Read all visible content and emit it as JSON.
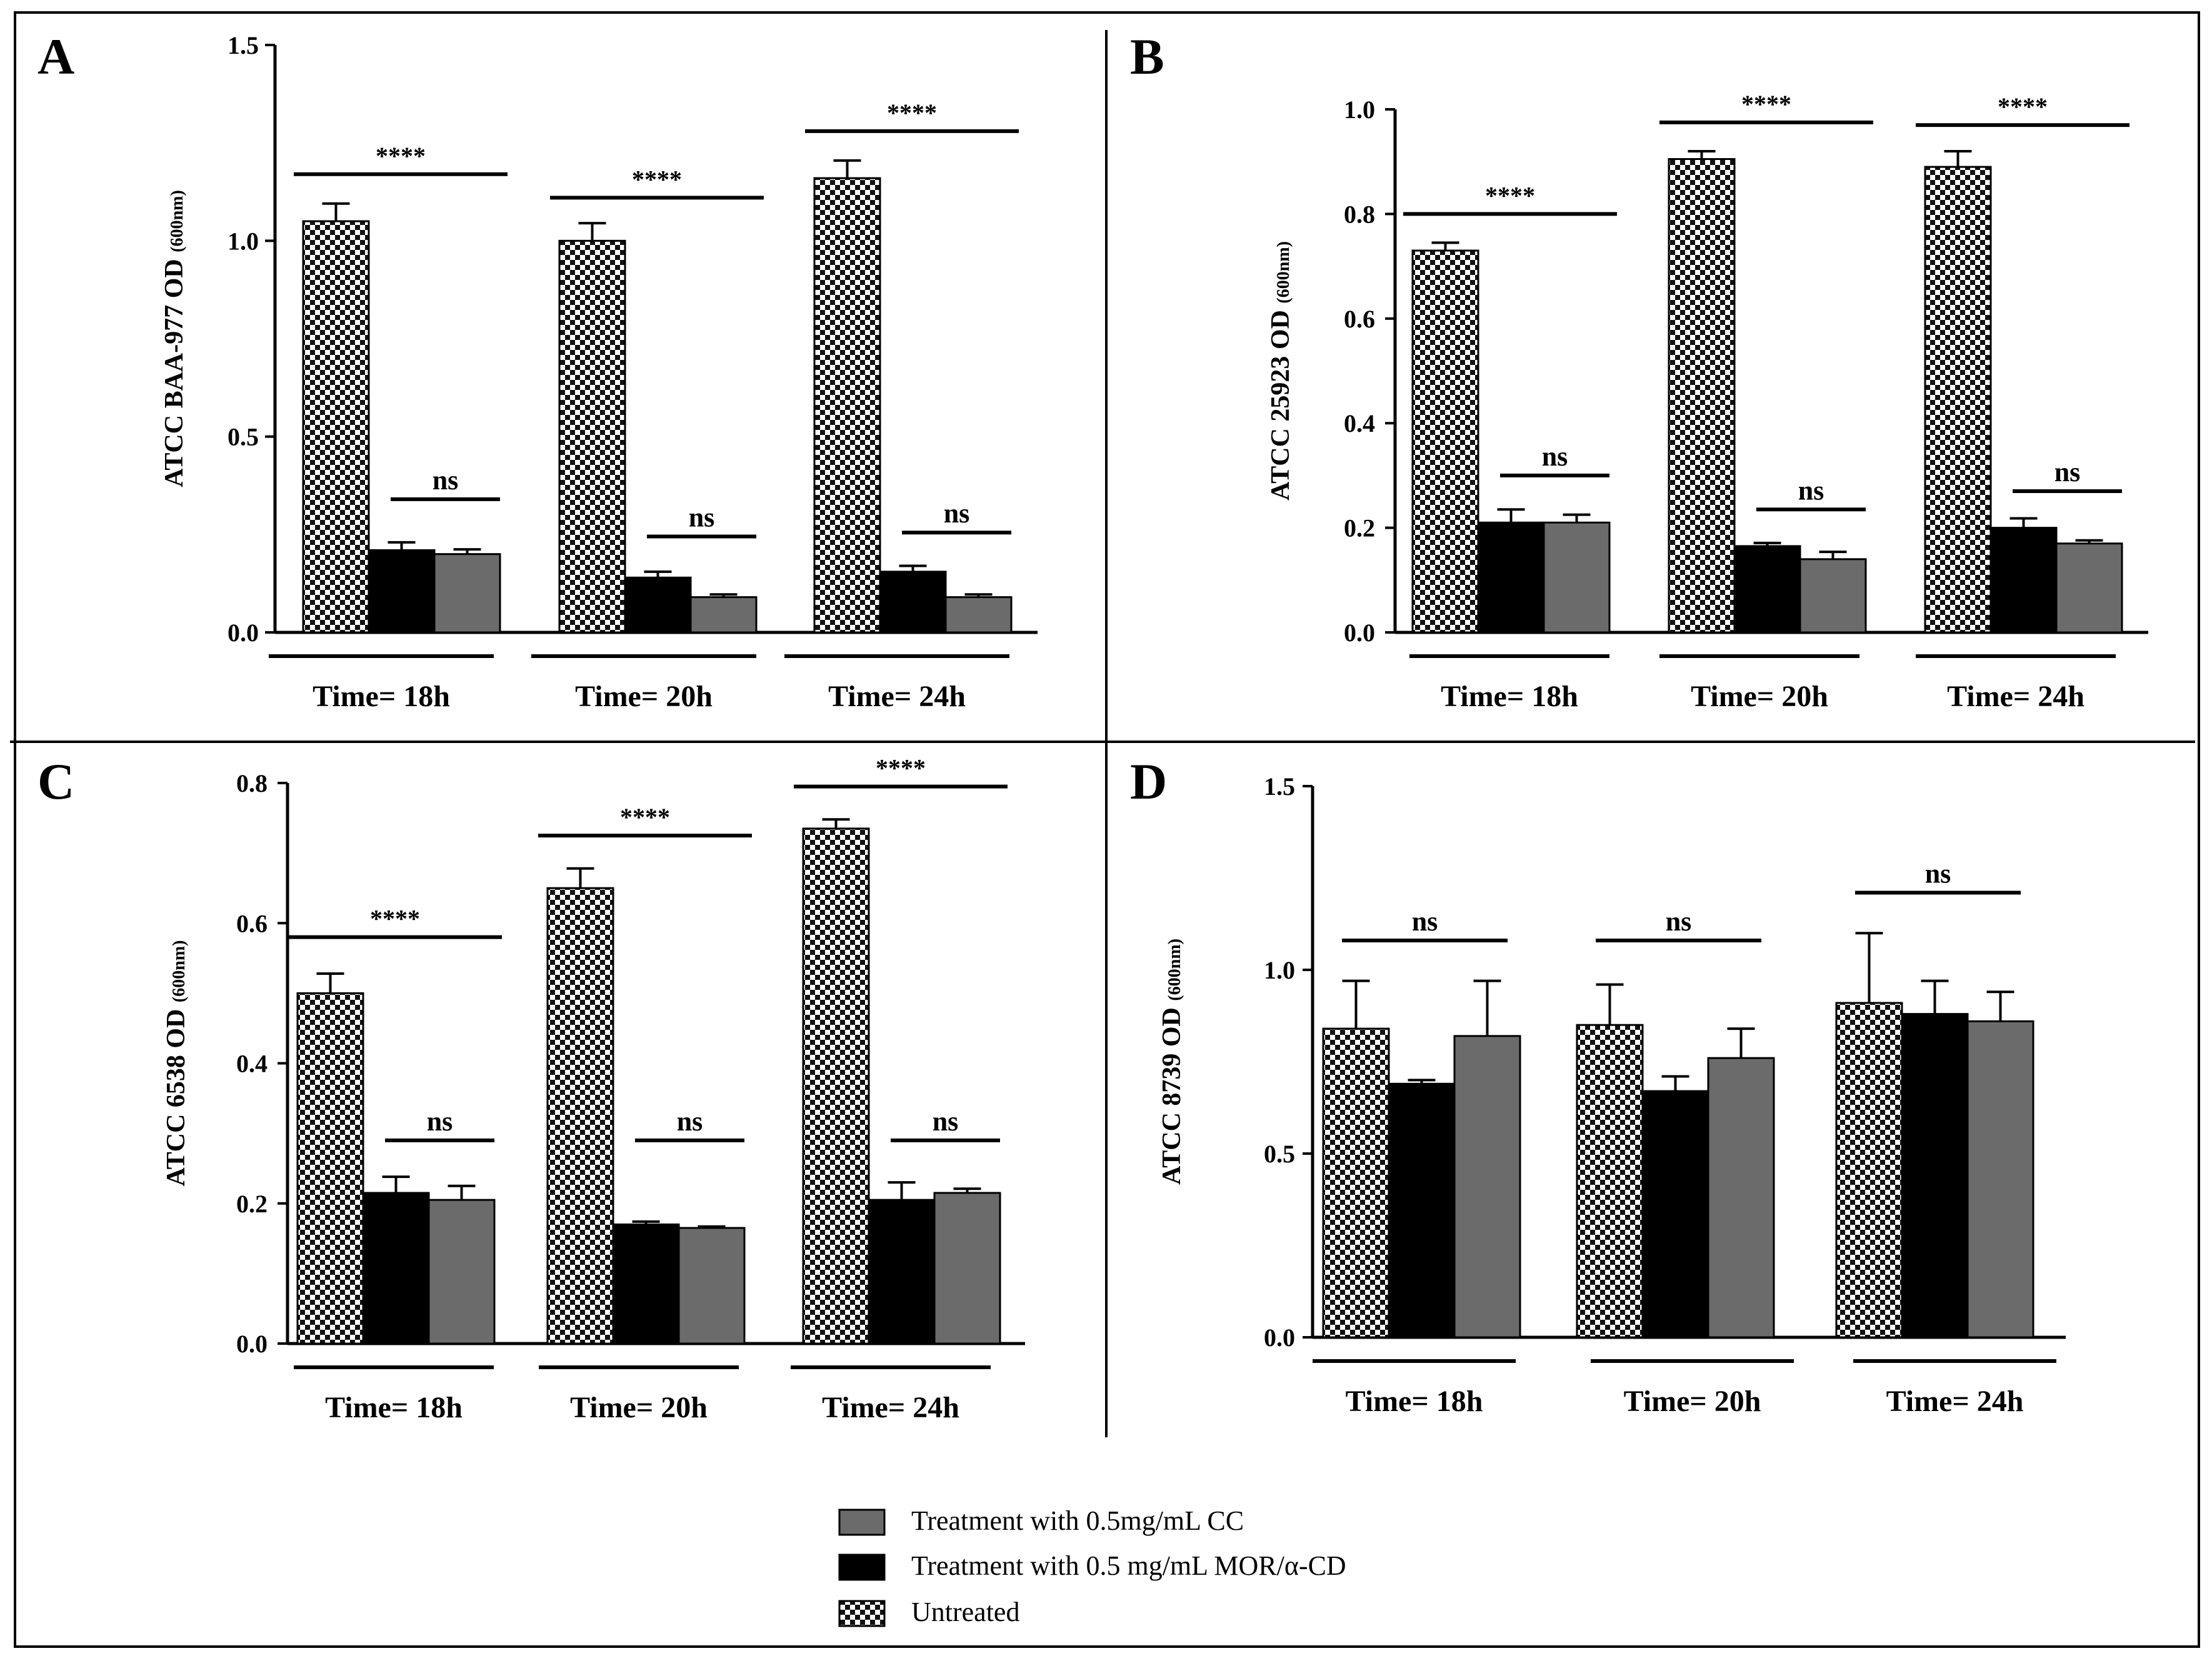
{
  "series_names": [
    "Untreated",
    "Treatment with 0.5 mg/mL MOR/α-CD",
    "Treatment with 0.5mg/mL  CC"
  ],
  "colors": {
    "untreated_light": "#ffffff",
    "untreated_dark": "#111111",
    "mor": "#000000",
    "cc": "#6b6b6b",
    "axis": "#000000"
  },
  "legend": {
    "items": [
      {
        "label": "Treatment with 0.5mg/mL  CC",
        "pattern": "cc"
      },
      {
        "label": "Treatment with 0.5 mg/mL MOR/α-CD",
        "pattern": "mor"
      },
      {
        "label": "Untreated",
        "pattern": "untreated"
      }
    ]
  },
  "chart_data": [
    {
      "panel": "A",
      "type": "bar",
      "ylabel_main": "ATCC BAA-977  OD",
      "ylabel_sub": "(600nm)",
      "ylim": [
        0,
        1.5
      ],
      "yticks": [
        "0.0",
        "0.5",
        "1.0",
        "1.5"
      ],
      "categories": [
        "Time= 18h",
        "Time= 20h",
        "Time= 24h"
      ],
      "values": [
        [
          1.05,
          0.21,
          0.2
        ],
        [
          1.0,
          0.14,
          0.09
        ],
        [
          1.16,
          0.155,
          0.09
        ]
      ],
      "errors": [
        [
          0.045,
          0.02,
          0.012
        ],
        [
          0.045,
          0.015,
          0.007
        ],
        [
          0.045,
          0.015,
          0.007
        ]
      ],
      "annotations": [
        {
          "group": 0,
          "text": "****",
          "y": 1.17,
          "span": "wide"
        },
        {
          "group": 0,
          "text": "ns",
          "y": 0.34,
          "span": "narrow"
        },
        {
          "group": 1,
          "text": "****",
          "y": 1.11,
          "span": "wide"
        },
        {
          "group": 1,
          "text": "ns",
          "y": 0.245,
          "span": "narrow"
        },
        {
          "group": 2,
          "text": "****",
          "y": 1.28,
          "span": "wide"
        },
        {
          "group": 2,
          "text": "ns",
          "y": 0.255,
          "span": "narrow"
        }
      ]
    },
    {
      "panel": "B",
      "type": "bar",
      "ylabel_main": "ATCC 25923 OD",
      "ylabel_sub": "(600nm)",
      "ylim": [
        0,
        1.0
      ],
      "yticks": [
        "0.0",
        "0.2",
        "0.4",
        "0.6",
        "0.8",
        "1.0"
      ],
      "categories": [
        "Time= 18h",
        "Time= 20h",
        "Time= 24h"
      ],
      "values": [
        [
          0.73,
          0.21,
          0.21
        ],
        [
          0.905,
          0.165,
          0.14
        ],
        [
          0.89,
          0.2,
          0.17
        ]
      ],
      "errors": [
        [
          0.015,
          0.025,
          0.015
        ],
        [
          0.015,
          0.006,
          0.014
        ],
        [
          0.03,
          0.018,
          0.006
        ]
      ],
      "annotations": [
        {
          "group": 0,
          "text": "****",
          "y": 0.8,
          "span": "wide"
        },
        {
          "group": 0,
          "text": "ns",
          "y": 0.3,
          "span": "narrow"
        },
        {
          "group": 1,
          "text": "****",
          "y": 0.975,
          "span": "wide"
        },
        {
          "group": 1,
          "text": "ns",
          "y": 0.235,
          "span": "narrow"
        },
        {
          "group": 2,
          "text": "****",
          "y": 0.97,
          "span": "wide"
        },
        {
          "group": 2,
          "text": "ns",
          "y": 0.27,
          "span": "narrow"
        }
      ]
    },
    {
      "panel": "C",
      "type": "bar",
      "ylabel_main": "ATCC 6538 OD",
      "ylabel_sub": "(600nm)",
      "ylim": [
        0,
        0.8
      ],
      "yticks": [
        "0.0",
        "0.2",
        "0.4",
        "0.6",
        "0.8"
      ],
      "categories": [
        "Time= 18h",
        "Time= 20h",
        "Time= 24h"
      ],
      "values": [
        [
          0.5,
          0.215,
          0.205
        ],
        [
          0.65,
          0.17,
          0.165
        ],
        [
          0.735,
          0.205,
          0.215
        ]
      ],
      "errors": [
        [
          0.028,
          0.023,
          0.02
        ],
        [
          0.028,
          0.004,
          0.002
        ],
        [
          0.013,
          0.025,
          0.006
        ]
      ],
      "annotations": [
        {
          "group": 0,
          "text": "****",
          "y": 0.58,
          "span": "wide"
        },
        {
          "group": 0,
          "text": "ns",
          "y": 0.29,
          "span": "narrow"
        },
        {
          "group": 1,
          "text": "****",
          "y": 0.725,
          "span": "wide"
        },
        {
          "group": 1,
          "text": "ns",
          "y": 0.29,
          "span": "narrow"
        },
        {
          "group": 2,
          "text": "****",
          "y": 0.795,
          "span": "wide"
        },
        {
          "group": 2,
          "text": "ns",
          "y": 0.29,
          "span": "narrow"
        }
      ]
    },
    {
      "panel": "D",
      "type": "bar",
      "ylabel_main": "ATCC 8739 OD",
      "ylabel_sub": "(600nm)",
      "ylim": [
        0,
        1.5
      ],
      "yticks": [
        "0.0",
        "0.5",
        "1.0",
        "1.5"
      ],
      "categories": [
        "Time= 18h",
        "Time= 20h",
        "Time= 24h"
      ],
      "values": [
        [
          0.84,
          0.69,
          0.82
        ],
        [
          0.85,
          0.67,
          0.76
        ],
        [
          0.91,
          0.88,
          0.86
        ]
      ],
      "errors": [
        [
          0.13,
          0.01,
          0.15
        ],
        [
          0.11,
          0.04,
          0.08
        ],
        [
          0.19,
          0.09,
          0.08
        ]
      ],
      "annotations": [
        {
          "group": 0,
          "text": "ns",
          "y": 1.08,
          "span": "full"
        },
        {
          "group": 1,
          "text": "ns",
          "y": 1.08,
          "span": "full"
        },
        {
          "group": 2,
          "text": "ns",
          "y": 1.21,
          "span": "full"
        }
      ]
    }
  ]
}
